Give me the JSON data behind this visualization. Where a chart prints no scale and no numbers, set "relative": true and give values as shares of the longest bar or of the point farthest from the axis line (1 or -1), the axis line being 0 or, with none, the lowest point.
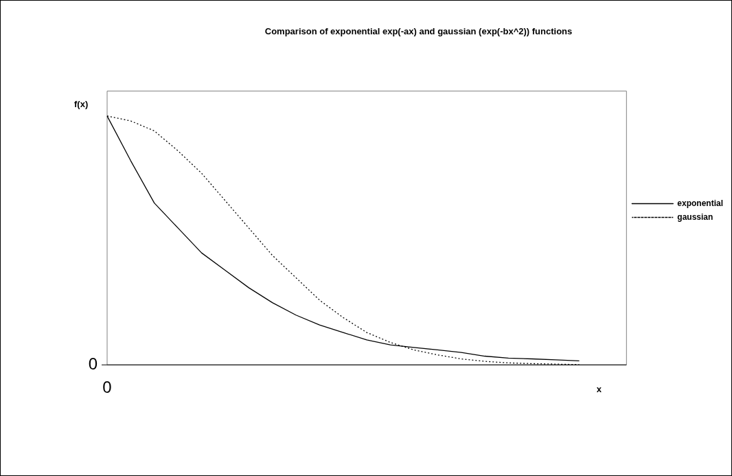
{
  "chart_data": {
    "type": "line",
    "title": "Comparison of exponential exp(-ax) and gaussian (exp(-bx^2)) functions",
    "xlabel": "x",
    "ylabel": "f(x)",
    "relative": true,
    "legend": "right",
    "marker": "none",
    "categories": [
      null,
      null,
      null,
      null,
      null,
      null,
      null,
      null,
      null,
      null,
      null,
      null,
      null,
      null,
      null,
      null,
      null,
      null,
      null,
      null,
      null,
      null,
      null
    ],
    "series": [
      {
        "name": "exponential",
        "color": "#000000",
        "line_style": "solid",
        "values": [
          1,
          0.82,
          0.65,
          0.55,
          0.45,
          0.38,
          0.31,
          0.25,
          0.2,
          0.16,
          0.13,
          0.1,
          0.08,
          0.07,
          0.06,
          0.05,
          0.035,
          0.027,
          0.024,
          0.02,
          0.016,
          null,
          null
        ]
      },
      {
        "name": "gaussian",
        "color": "#000000",
        "line_style": "dotted",
        "values": [
          1,
          0.98,
          0.94,
          0.86,
          0.77,
          0.66,
          0.55,
          0.44,
          0.35,
          0.26,
          0.19,
          0.13,
          0.09,
          0.06,
          0.04,
          0.024,
          0.014,
          0.008,
          0.005,
          0.003,
          0.001,
          null,
          null
        ]
      }
    ],
    "annotations": [
      "0",
      "0"
    ]
  }
}
